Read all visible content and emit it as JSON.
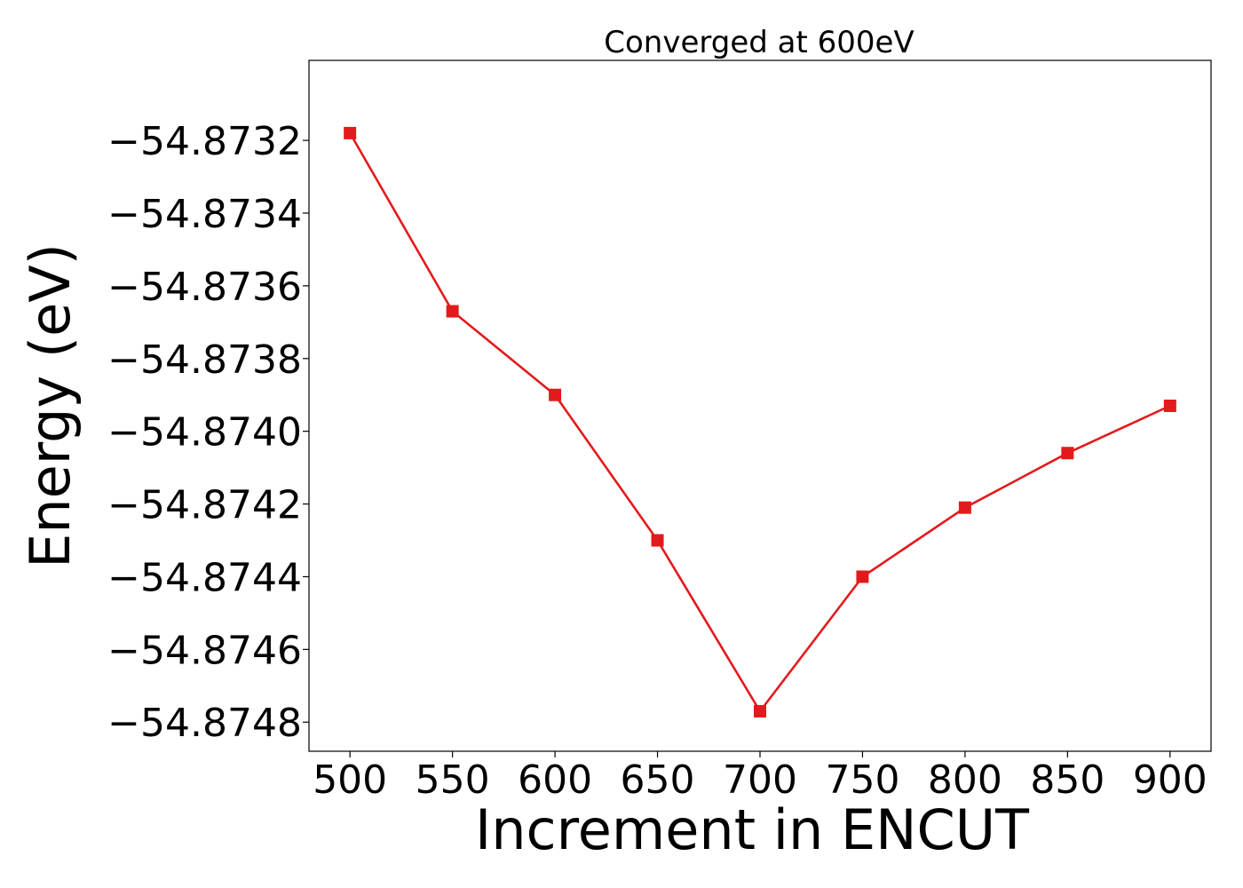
{
  "chart_data": {
    "type": "line",
    "title": "Converged at 600eV",
    "xlabel": "Increment in ENCUT",
    "ylabel": "Energy (eV)",
    "x": [
      500,
      550,
      600,
      650,
      700,
      750,
      800,
      850,
      900
    ],
    "y": [
      -54.87318,
      -54.87367,
      -54.8739,
      -54.8743,
      -54.87477,
      -54.8744,
      -54.87421,
      -54.87406,
      -54.87393
    ],
    "xticks": [
      500,
      550,
      600,
      650,
      700,
      750,
      800,
      850,
      900
    ],
    "xtick_labels": [
      "500",
      "550",
      "600",
      "650",
      "700",
      "750",
      "800",
      "850",
      "900"
    ],
    "yticks": [
      -54.8732,
      -54.8734,
      -54.8736,
      -54.8738,
      -54.874,
      -54.8742,
      -54.8744,
      -54.8746,
      -54.8748
    ],
    "ytick_labels": [
      "−54.8732",
      "−54.8734",
      "−54.8736",
      "−54.8738",
      "−54.8740",
      "−54.8742",
      "−54.8744",
      "−54.8746",
      "−54.8748"
    ],
    "xlim": [
      480,
      920
    ],
    "ylim": [
      -54.87488,
      -54.87298
    ],
    "marker": "square",
    "line_color": "#e31a1c",
    "marker_color": "#e31a1c",
    "grid": false,
    "legend": null
  }
}
